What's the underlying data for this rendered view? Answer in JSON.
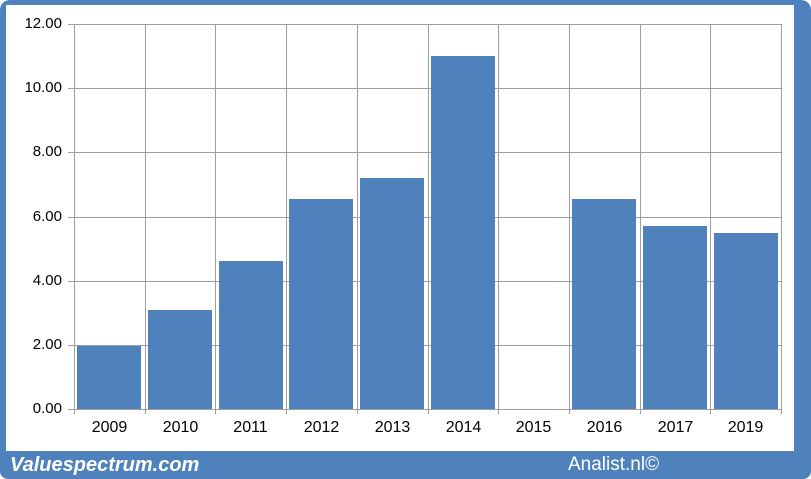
{
  "chart_data": {
    "type": "bar",
    "title": "",
    "xlabel": "",
    "ylabel": "",
    "categories": [
      "2009",
      "2010",
      "2011",
      "2012",
      "2013",
      "2014",
      "2015",
      "2016",
      "2017",
      "2019"
    ],
    "values": [
      1.95,
      3.1,
      4.6,
      6.55,
      7.2,
      11.0,
      null,
      6.55,
      5.7,
      5.5
    ],
    "ylim": [
      0,
      12
    ],
    "ytick_step": 2,
    "ytick_labels": [
      "0.00",
      "2.00",
      "4.00",
      "6.00",
      "8.00",
      "10.00",
      "12.00"
    ],
    "grid": "horizontal-and-vertical",
    "legend_position": "none",
    "bar_color": "#4f81bd",
    "gridline_color": "#9f9f9f"
  },
  "footer": {
    "left_brand": "Valuespectrum.com",
    "right_brand": "Analist.nl©"
  },
  "colors": {
    "frame_blue": "#4f81bd",
    "panel_background": "#ffffff",
    "axis_text": "#000000",
    "footer_text": "#ffffff"
  }
}
